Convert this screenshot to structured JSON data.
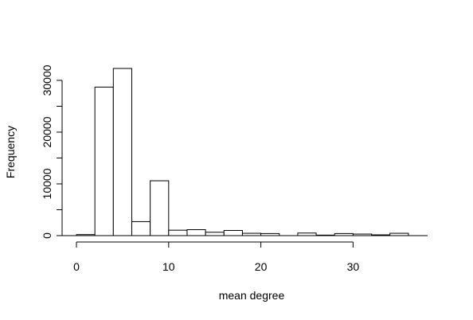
{
  "chart_data": {
    "type": "bar",
    "histogram": true,
    "title": "",
    "xlabel": "mean degree",
    "ylabel": "Frequency",
    "bin_edges": [
      0,
      2,
      4,
      6,
      8,
      10,
      12,
      14,
      16,
      18,
      20,
      22,
      24,
      26,
      28,
      30,
      32,
      34,
      36
    ],
    "values": [
      200,
      28700,
      32300,
      2700,
      10600,
      1050,
      1150,
      650,
      1000,
      450,
      400,
      0,
      500,
      100,
      400,
      300,
      150,
      450
    ],
    "xlim": [
      0,
      38
    ],
    "ylim": [
      0,
      32300
    ],
    "x_ticks": [
      0,
      10,
      20,
      30
    ],
    "y_ticks": [
      0,
      10000,
      20000,
      30000
    ],
    "grid": false,
    "bar_fill": "#ffffff",
    "bar_stroke": "#000000"
  }
}
